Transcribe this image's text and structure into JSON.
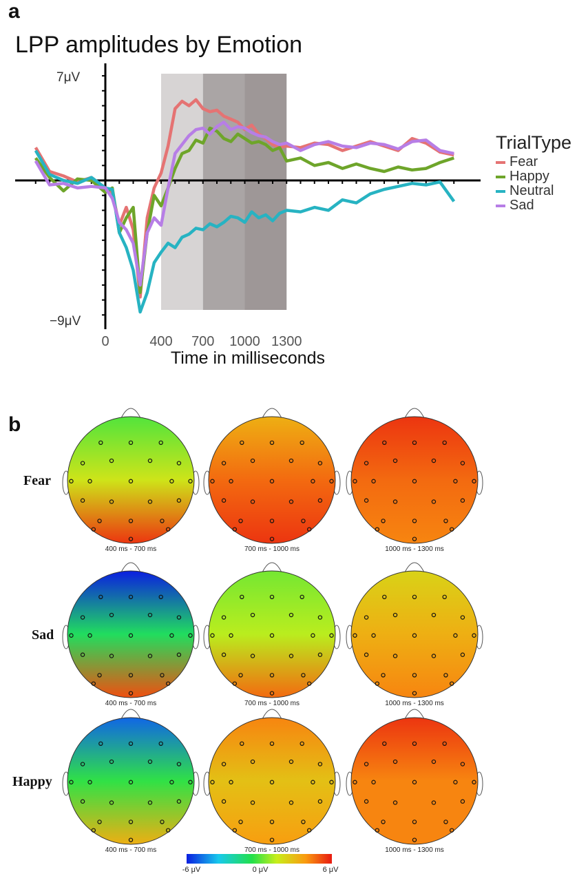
{
  "panel_a_label": "a",
  "panel_b_label": "b",
  "chart_data": [
    {
      "type": "line",
      "title": "LPP amplitudes by Emotion",
      "xlabel": "Time in milliseconds",
      "ylabel": "",
      "x_ticks_labeled": [
        0,
        400,
        700,
        1000,
        1300
      ],
      "y_tick_labels": [
        "7μV",
        "−9μV"
      ],
      "ylim": [
        -9,
        7
      ],
      "xlim": [
        -500,
        2500
      ],
      "shaded_windows": [
        {
          "start": 400,
          "end": 700,
          "color": "#d7d4d4"
        },
        {
          "start": 700,
          "end": 1000,
          "color": "#aaa5a5"
        },
        {
          "start": 1000,
          "end": 1300,
          "color": "#9e9797"
        }
      ],
      "legend": {
        "title": "TrialType",
        "placement": "right"
      },
      "series": [
        {
          "name": "Fear",
          "color": "#e57373",
          "x": [
            -500,
            -400,
            -300,
            -200,
            -100,
            0,
            50,
            100,
            150,
            200,
            250,
            300,
            350,
            400,
            450,
            500,
            550,
            600,
            650,
            700,
            750,
            800,
            850,
            900,
            950,
            1000,
            1050,
            1100,
            1150,
            1200,
            1250,
            1300,
            1400,
            1500,
            1600,
            1700,
            1800,
            1900,
            2000,
            2100,
            2200,
            2300,
            2400,
            2500
          ],
          "y": [
            2.2,
            0.6,
            0.3,
            -0.1,
            0.2,
            -0.5,
            -0.8,
            -3.0,
            -1.8,
            -3.3,
            -7.8,
            -2.5,
            -0.5,
            0.5,
            2.3,
            4.8,
            5.3,
            5.0,
            5.4,
            4.8,
            4.6,
            4.7,
            4.3,
            4.1,
            3.9,
            3.4,
            3.7,
            3.1,
            2.8,
            2.4,
            2.2,
            2.3,
            2.2,
            2.5,
            2.4,
            2.0,
            2.3,
            2.6,
            2.3,
            2.0,
            2.8,
            2.5,
            1.9,
            1.7
          ]
        },
        {
          "name": "Happy",
          "color": "#6ea52a",
          "x": [
            -500,
            -400,
            -300,
            -200,
            -100,
            0,
            50,
            100,
            150,
            200,
            250,
            300,
            350,
            400,
            450,
            500,
            550,
            600,
            650,
            700,
            750,
            800,
            850,
            900,
            950,
            1000,
            1050,
            1100,
            1150,
            1200,
            1250,
            1300,
            1400,
            1500,
            1600,
            1700,
            1800,
            1900,
            2000,
            2100,
            2200,
            2300,
            2400,
            2500
          ],
          "y": [
            1.5,
            0.2,
            -0.7,
            0.1,
            0.0,
            -0.8,
            -0.5,
            -3.5,
            -2.5,
            -1.8,
            -7.5,
            -3.5,
            -1.0,
            -1.7,
            -0.5,
            0.8,
            1.8,
            2.0,
            2.7,
            2.5,
            3.5,
            3.3,
            2.8,
            2.6,
            3.1,
            2.8,
            2.5,
            2.6,
            2.4,
            2.0,
            2.2,
            1.3,
            1.5,
            1.0,
            1.2,
            0.8,
            1.1,
            0.8,
            0.6,
            0.9,
            0.7,
            0.8,
            1.2,
            1.5
          ]
        },
        {
          "name": "Neutral",
          "color": "#27b3c2",
          "x": [
            -500,
            -400,
            -300,
            -200,
            -100,
            0,
            50,
            100,
            150,
            200,
            250,
            300,
            350,
            400,
            450,
            500,
            550,
            600,
            650,
            700,
            750,
            800,
            850,
            900,
            950,
            1000,
            1050,
            1100,
            1150,
            1200,
            1250,
            1300,
            1400,
            1500,
            1600,
            1700,
            1800,
            1900,
            2000,
            2100,
            2200,
            2300,
            2400,
            2500
          ],
          "y": [
            2.0,
            0.4,
            0.0,
            -0.2,
            0.2,
            -0.5,
            -0.6,
            -3.5,
            -4.5,
            -6.0,
            -8.8,
            -7.5,
            -5.5,
            -4.8,
            -4.2,
            -4.5,
            -3.8,
            -3.6,
            -3.2,
            -3.3,
            -2.9,
            -3.1,
            -2.8,
            -2.4,
            -2.5,
            -2.8,
            -2.1,
            -2.5,
            -2.3,
            -2.7,
            -2.2,
            -2.0,
            -2.1,
            -1.8,
            -2.0,
            -1.3,
            -1.5,
            -0.9,
            -0.6,
            -0.4,
            -0.2,
            -0.3,
            -0.1,
            -1.4
          ]
        },
        {
          "name": "Sad",
          "color": "#b77ee6",
          "x": [
            -500,
            -400,
            -300,
            -200,
            -100,
            0,
            50,
            100,
            150,
            200,
            250,
            300,
            350,
            400,
            450,
            500,
            550,
            600,
            650,
            700,
            750,
            800,
            850,
            900,
            950,
            1000,
            1050,
            1100,
            1150,
            1200,
            1250,
            1300,
            1400,
            1500,
            1600,
            1700,
            1800,
            1900,
            2000,
            2100,
            2200,
            2300,
            2400,
            2500
          ],
          "y": [
            1.3,
            -0.3,
            -0.2,
            -0.5,
            -0.4,
            -0.5,
            -1.2,
            -2.8,
            -3.3,
            -4.2,
            -7.0,
            -3.5,
            -2.5,
            -3.0,
            -0.5,
            1.8,
            2.4,
            3.0,
            3.4,
            3.5,
            3.1,
            3.6,
            3.9,
            3.4,
            3.6,
            3.5,
            3.2,
            3.0,
            2.9,
            2.6,
            2.4,
            2.5,
            2.0,
            2.4,
            2.6,
            2.3,
            2.2,
            2.5,
            2.4,
            2.1,
            2.6,
            2.7,
            2.0,
            1.8
          ]
        }
      ]
    },
    {
      "type": "heatmap",
      "subtype": "scalp topography",
      "rows": [
        "Fear",
        "Sad",
        "Happy"
      ],
      "windows": [
        "400 ms - 700 ms",
        "700 ms - 1000 ms",
        "1000 ms - 1300 ms"
      ],
      "colorbar": {
        "min": -6,
        "max": 6,
        "units": "μV",
        "ticks": [
          "-6 μV",
          "0 μV",
          "6 μV"
        ],
        "colors": [
          "#0a1fe0",
          "#18c9ec",
          "#22e04a",
          "#c8ee1a",
          "#fa9a10",
          "#e81a10"
        ]
      },
      "values_uV": {
        "Fear": [
          {
            "frontal": -0.5,
            "central": 1.5,
            "posterior": 5.5
          },
          {
            "frontal": 3.0,
            "central": 4.5,
            "posterior": 5.5
          },
          {
            "frontal": 5.5,
            "central": 4.5,
            "posterior": 4.0
          }
        ],
        "Sad": [
          {
            "frontal": -6.0,
            "central": -1.5,
            "posterior": 5.0
          },
          {
            "frontal": 0.0,
            "central": 1.0,
            "posterior": 4.5
          },
          {
            "frontal": 2.0,
            "central": 3.0,
            "posterior": 4.0
          }
        ],
        "Happy": [
          {
            "frontal": -5.0,
            "central": -1.0,
            "posterior": 3.0
          },
          {
            "frontal": 4.0,
            "central": 2.5,
            "posterior": 3.5
          },
          {
            "frontal": 5.5,
            "central": 4.0,
            "posterior": 4.0
          }
        ]
      }
    }
  ]
}
